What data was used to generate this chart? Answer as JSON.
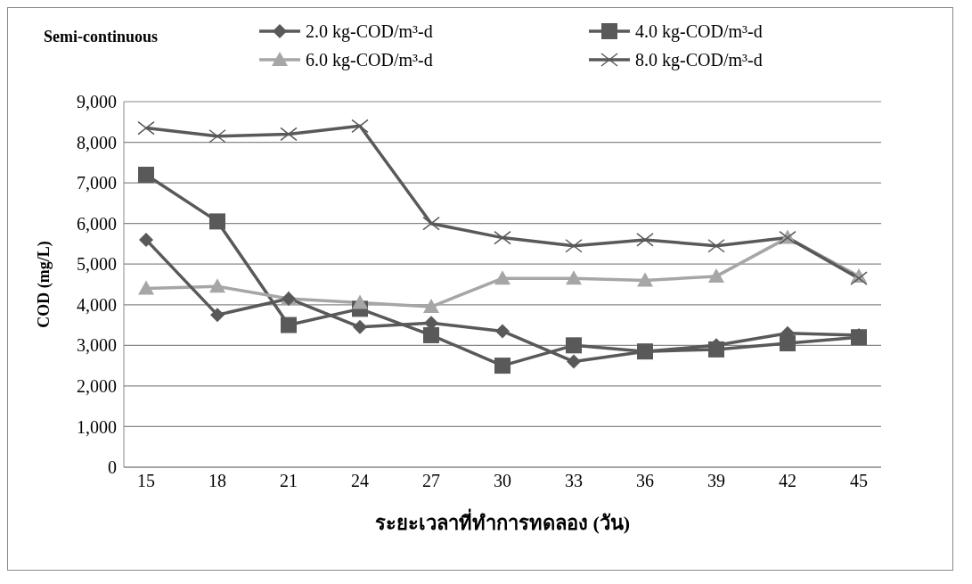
{
  "chart_data": {
    "type": "line",
    "title": "Semi-continuous",
    "xlabel": "ระยะเวลาที่ทำการทดลอง (วัน)",
    "ylabel": "COD (mg/L)",
    "categories": [
      "15",
      "18",
      "21",
      "24",
      "27",
      "30",
      "33",
      "36",
      "39",
      "42",
      "45"
    ],
    "ylim": [
      0,
      9000
    ],
    "yticks": [
      {
        "value": 0,
        "label": "0"
      },
      {
        "value": 1000,
        "label": "1,000"
      },
      {
        "value": 2000,
        "label": "2,000"
      },
      {
        "value": 3000,
        "label": "3,000"
      },
      {
        "value": 4000,
        "label": "4,000"
      },
      {
        "value": 5000,
        "label": "5,000"
      },
      {
        "value": 6000,
        "label": "6,000"
      },
      {
        "value": 7000,
        "label": "7,000"
      },
      {
        "value": 8000,
        "label": "8,000"
      },
      {
        "value": 9000,
        "label": "9,000"
      }
    ],
    "grid": "y",
    "legend": "top right",
    "line_style": "solid",
    "series": [
      {
        "name": "2.0 kg-COD/m³-d",
        "color": "#595959",
        "marker": "diamond",
        "values": [
          5600,
          3750,
          4150,
          3450,
          3550,
          3350,
          2600,
          2850,
          3000,
          3300,
          3250
        ]
      },
      {
        "name": "4.0 kg-COD/m³-d",
        "color": "#595959",
        "marker": "square",
        "values": [
          7200,
          6050,
          3500,
          3900,
          3250,
          2500,
          3000,
          2850,
          2900,
          3050,
          3200
        ]
      },
      {
        "name": "6.0 kg-COD/m³-d",
        "color": "#a6a6a6",
        "marker": "triangle",
        "values": [
          4400,
          4450,
          4150,
          4050,
          3950,
          4650,
          4650,
          4600,
          4700,
          5650,
          4700
        ]
      },
      {
        "name": "8.0 kg-COD/m³-d",
        "color": "#595959",
        "marker": "cross",
        "values": [
          8350,
          8150,
          8200,
          8400,
          6000,
          5650,
          5450,
          5600,
          5450,
          5650,
          4650
        ]
      }
    ]
  }
}
